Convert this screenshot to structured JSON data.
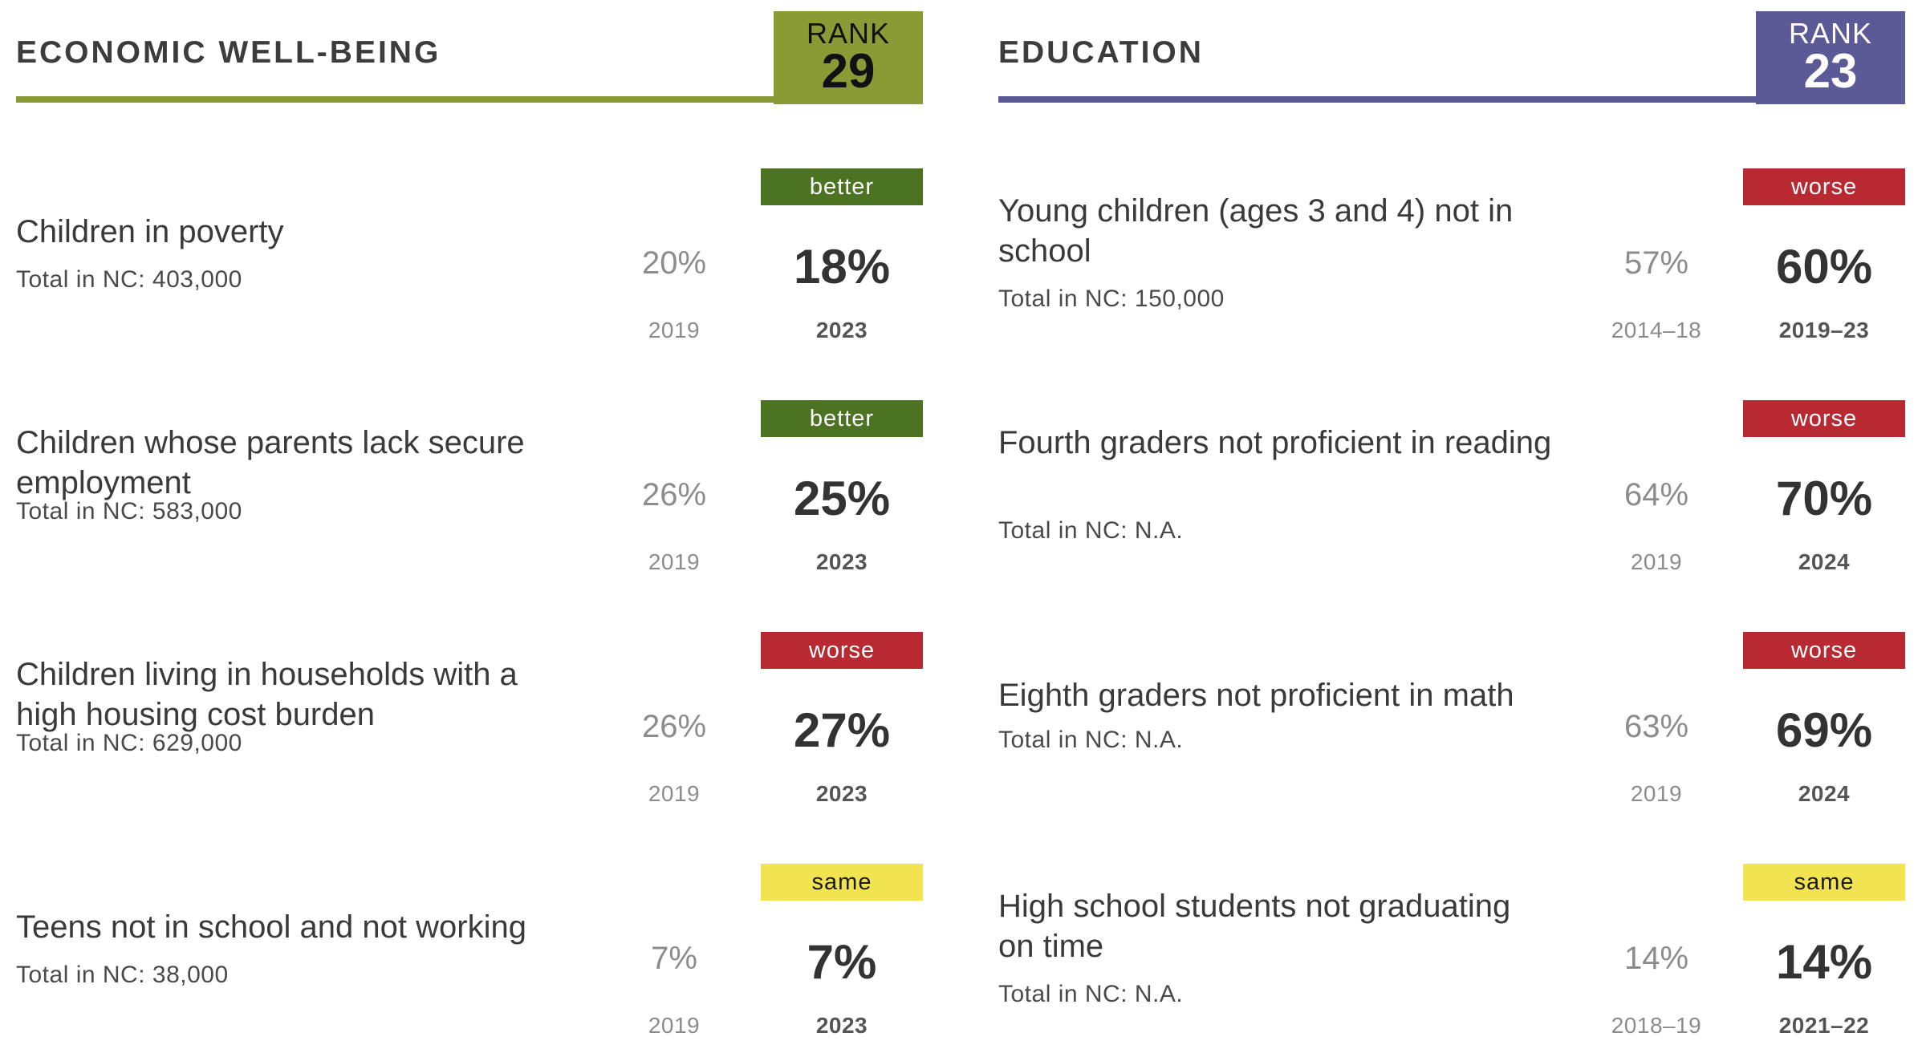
{
  "colors": {
    "economic_accent": "#8a9a35",
    "education_accent": "#5b5a96",
    "better": "#4b7322",
    "worse": "#b82932",
    "same": "#f2e450"
  },
  "economic": {
    "title": "ECONOMIC WELL-BEING",
    "rank_label": "RANK",
    "rank": "29",
    "indicators": [
      {
        "title": "Children in poverty",
        "total": "Total in NC: 403,000",
        "prev_value": "20%",
        "prev_year": "2019",
        "trend": "better",
        "value": "18%",
        "year": "2023"
      },
      {
        "title": "Children whose parents lack secure employment",
        "total": "Total in NC: 583,000",
        "prev_value": "26%",
        "prev_year": "2019",
        "trend": "better",
        "value": "25%",
        "year": "2023"
      },
      {
        "title": "Children living in households with a high housing cost burden",
        "total": "Total in NC: 629,000",
        "prev_value": "26%",
        "prev_year": "2019",
        "trend": "worse",
        "value": "27%",
        "year": "2023"
      },
      {
        "title": "Teens not in school and not working",
        "total": "Total in NC: 38,000",
        "prev_value": "7%",
        "prev_year": "2019",
        "trend": "same",
        "value": "7%",
        "year": "2023"
      }
    ]
  },
  "education": {
    "title": "EDUCATION",
    "rank_label": "RANK",
    "rank": "23",
    "indicators": [
      {
        "title": "Young children (ages 3 and 4) not in school",
        "total": "Total in NC: 150,000",
        "prev_value": "57%",
        "prev_year": "2014–18",
        "trend": "worse",
        "value": "60%",
        "year": "2019–23"
      },
      {
        "title": "Fourth graders not proficient in reading",
        "total": "Total in NC: N.A.",
        "prev_value": "64%",
        "prev_year": "2019",
        "trend": "worse",
        "value": "70%",
        "year": "2024"
      },
      {
        "title": "Eighth graders not proficient in math",
        "total": "Total in NC: N.A.",
        "prev_value": "63%",
        "prev_year": "2019",
        "trend": "worse",
        "value": "69%",
        "year": "2024"
      },
      {
        "title": "High school students not graduating on time",
        "total": "Total in NC: N.A.",
        "prev_value": "14%",
        "prev_year": "2018–19",
        "trend": "same",
        "value": "14%",
        "year": "2021–22"
      }
    ]
  }
}
